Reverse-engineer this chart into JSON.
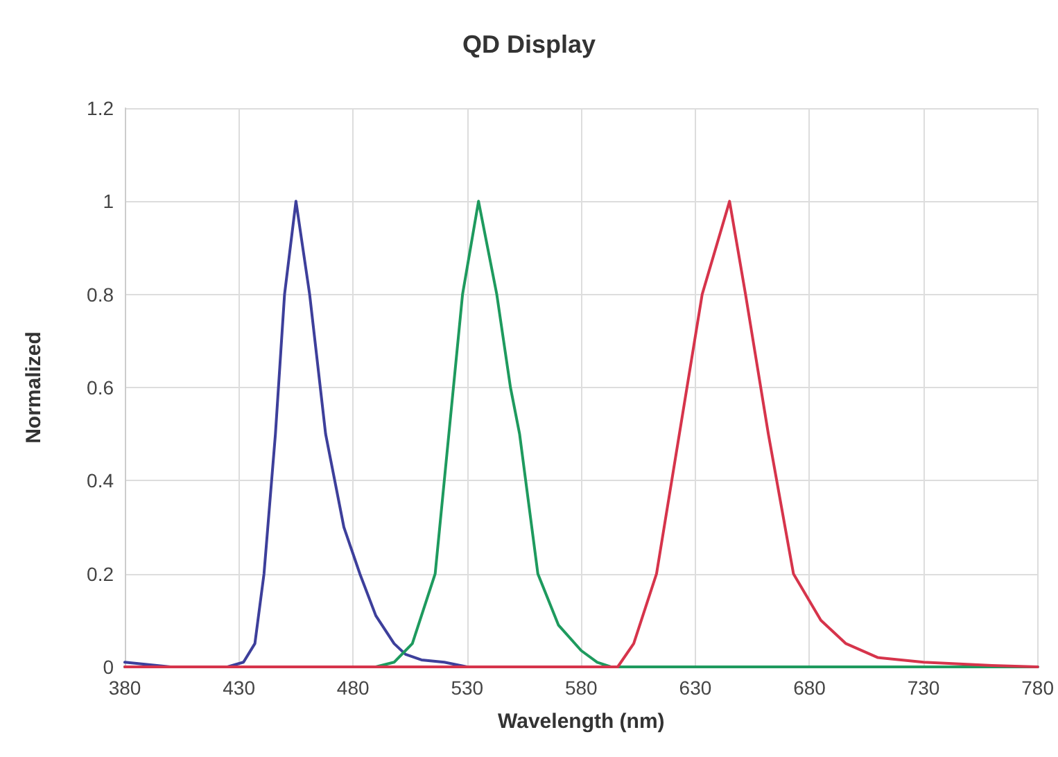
{
  "chart_data": {
    "type": "line",
    "title": "QD Display",
    "xlabel": "Wavelength (nm)",
    "ylabel": "Normalized",
    "xlim": [
      380,
      780
    ],
    "xticks": [
      380,
      430,
      480,
      530,
      580,
      630,
      680,
      730,
      780
    ],
    "ylim": [
      0,
      1.2
    ],
    "yticks": [
      0,
      0.2,
      0.4,
      0.6,
      0.8,
      1,
      1.2
    ],
    "grid": true,
    "marker": "none",
    "line_style": "solid",
    "series": [
      {
        "color": "#3d3f9b",
        "x": [
          380,
          400,
          425,
          432,
          437,
          441,
          446,
          450,
          455,
          461,
          468,
          476,
          483,
          490,
          498,
          503,
          510,
          520,
          530,
          600,
          780
        ],
        "values": [
          0.01,
          0,
          0,
          0.01,
          0.05,
          0.2,
          0.5,
          0.8,
          1,
          0.8,
          0.5,
          0.3,
          0.2,
          0.11,
          0.05,
          0.027,
          0.015,
          0.01,
          0,
          0,
          0
        ]
      },
      {
        "color": "#1e9a5e",
        "x": [
          380,
          490,
          498,
          506,
          516,
          522,
          528,
          535,
          543,
          549,
          553,
          561,
          570,
          580,
          587,
          593,
          600,
          780
        ],
        "values": [
          0,
          0,
          0.01,
          0.05,
          0.2,
          0.5,
          0.8,
          1,
          0.8,
          0.6,
          0.5,
          0.2,
          0.09,
          0.035,
          0.01,
          0,
          0,
          0
        ]
      },
      {
        "color": "#d6344b",
        "x": [
          380,
          590,
          596,
          603,
          613,
          623,
          633,
          645,
          652,
          662,
          673,
          685,
          696,
          710,
          730,
          760,
          780
        ],
        "values": [
          0,
          0,
          0,
          0.05,
          0.2,
          0.5,
          0.8,
          1,
          0.8,
          0.5,
          0.2,
          0.1,
          0.05,
          0.02,
          0.01,
          0.003,
          0
        ]
      }
    ]
  }
}
